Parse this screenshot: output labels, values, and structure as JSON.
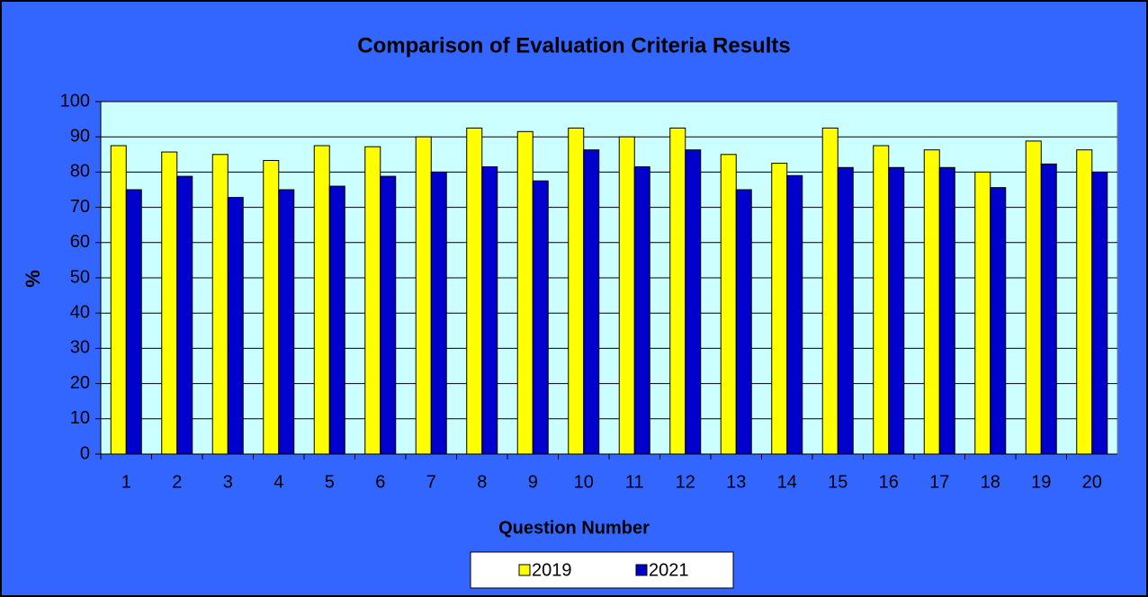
{
  "chart_data": {
    "type": "bar",
    "title": "Comparison of Evaluation Criteria Results",
    "x_label": "Question Number",
    "y_label": "%",
    "categories": [
      "1",
      "2",
      "3",
      "4",
      "5",
      "6",
      "7",
      "8",
      "9",
      "10",
      "11",
      "12",
      "13",
      "14",
      "15",
      "16",
      "17",
      "18",
      "19",
      "20"
    ],
    "series": [
      {
        "name": "2019",
        "color": "#ffff00",
        "values": [
          87.5,
          85.7,
          85,
          83.3,
          87.5,
          87.2,
          90,
          92.5,
          91.5,
          92.5,
          90,
          92.5,
          85,
          82.5,
          92.5,
          87.5,
          86.3,
          80,
          88.8,
          86.3
        ]
      },
      {
        "name": "2021",
        "color": "#0000cc",
        "values": [
          75,
          78.8,
          72.8,
          75,
          76,
          78.8,
          80,
          81.5,
          77.5,
          86.3,
          81.5,
          86.3,
          75,
          79,
          81.3,
          81.3,
          81.3,
          75.6,
          82.3,
          80
        ]
      }
    ],
    "ylim": [
      0,
      100
    ],
    "yticks": [
      0,
      10,
      20,
      30,
      40,
      50,
      60,
      70,
      80,
      90,
      100
    ],
    "grid": true,
    "legend": "bottom"
  }
}
